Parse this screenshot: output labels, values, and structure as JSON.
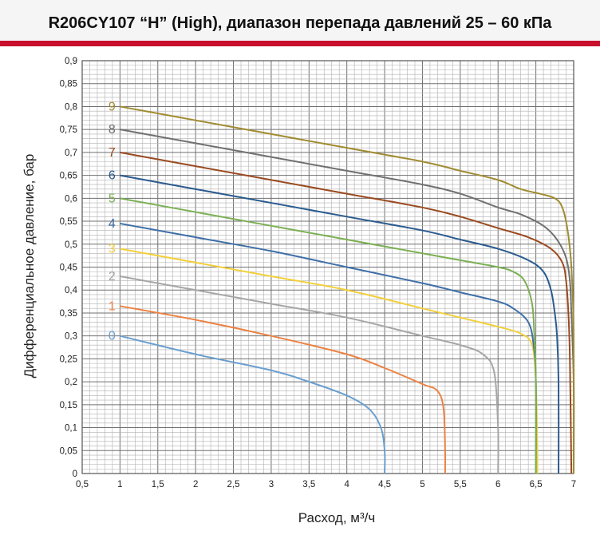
{
  "title": "R206CY107 “H” (High), диапазон перепада давлений 25 – 60 кПа",
  "colors": {
    "header_bar": "#c8102e",
    "grid_major": "#707070",
    "grid_minor": "#b0b0b0"
  },
  "chart_data": {
    "type": "line",
    "title": "R206CY107 “H” (High), диапазон перепада давлений 25 – 60 кПа",
    "xlabel": "Расход, м³/ч",
    "ylabel": "Дифференциальное давление, бар",
    "xlim": [
      0.5,
      7
    ],
    "ylim": [
      0,
      0.9
    ],
    "xticks": [
      0.5,
      1,
      1.5,
      2,
      2.5,
      3,
      3.5,
      4,
      4.5,
      5,
      5.5,
      6,
      6.5,
      7
    ],
    "xtick_labels": [
      "0,5",
      "1",
      "1,5",
      "2",
      "2,5",
      "3",
      "3,5",
      "4",
      "4,5",
      "5",
      "5,5",
      "6",
      "6,5",
      "7"
    ],
    "yticks": [
      0,
      0.05,
      0.1,
      0.15,
      0.2,
      0.25,
      0.3,
      0.35,
      0.4,
      0.45,
      0.5,
      0.55,
      0.6,
      0.65,
      0.7,
      0.75,
      0.8,
      0.85,
      0.9
    ],
    "ytick_labels": [
      "0",
      "0,05",
      "0,1",
      "0,15",
      "0,2",
      "0,25",
      "0,3",
      "0,35",
      "0,4",
      "0,45",
      "0,5",
      "0,55",
      "0,6",
      "0,65",
      "0,7",
      "0,75",
      "0,8",
      "0,85",
      "0,9"
    ],
    "grid": true,
    "series": [
      {
        "name": "0",
        "color": "#6a9fd0",
        "points": [
          [
            1,
            0.3
          ],
          [
            2,
            0.26
          ],
          [
            3,
            0.225
          ],
          [
            3.5,
            0.2
          ],
          [
            4,
            0.17
          ],
          [
            4.3,
            0.14
          ],
          [
            4.45,
            0.1
          ],
          [
            4.5,
            0.05
          ],
          [
            4.5,
            0
          ]
        ]
      },
      {
        "name": "1",
        "color": "#ec8242",
        "points": [
          [
            1,
            0.365
          ],
          [
            2,
            0.335
          ],
          [
            3,
            0.3
          ],
          [
            4,
            0.26
          ],
          [
            4.5,
            0.23
          ],
          [
            5,
            0.195
          ],
          [
            5.2,
            0.18
          ],
          [
            5.28,
            0.14
          ],
          [
            5.3,
            0.05
          ],
          [
            5.3,
            0
          ]
        ]
      },
      {
        "name": "2",
        "color": "#a6a6a6",
        "points": [
          [
            1,
            0.43
          ],
          [
            2,
            0.4
          ],
          [
            3,
            0.37
          ],
          [
            4,
            0.34
          ],
          [
            5,
            0.3
          ],
          [
            5.5,
            0.28
          ],
          [
            5.8,
            0.26
          ],
          [
            5.95,
            0.22
          ],
          [
            6,
            0.1
          ],
          [
            6,
            0
          ]
        ]
      },
      {
        "name": "3",
        "color": "#f2d03b",
        "points": [
          [
            1,
            0.49
          ],
          [
            2,
            0.46
          ],
          [
            3,
            0.43
          ],
          [
            4,
            0.4
          ],
          [
            5,
            0.36
          ],
          [
            5.5,
            0.34
          ],
          [
            6,
            0.32
          ],
          [
            6.3,
            0.305
          ],
          [
            6.45,
            0.28
          ],
          [
            6.5,
            0.2
          ],
          [
            6.52,
            0.05
          ],
          [
            6.52,
            0
          ]
        ]
      },
      {
        "name": "4",
        "color": "#3f6fa8",
        "points": [
          [
            1,
            0.545
          ],
          [
            2,
            0.515
          ],
          [
            3,
            0.485
          ],
          [
            4,
            0.45
          ],
          [
            5,
            0.415
          ],
          [
            5.5,
            0.395
          ],
          [
            6,
            0.375
          ],
          [
            6.2,
            0.36
          ],
          [
            6.4,
            0.33
          ],
          [
            6.47,
            0.28
          ],
          [
            6.5,
            0.2
          ],
          [
            6.5,
            0
          ]
        ]
      },
      {
        "name": "5",
        "color": "#7bb054",
        "points": [
          [
            1,
            0.6
          ],
          [
            2,
            0.57
          ],
          [
            3,
            0.54
          ],
          [
            4,
            0.51
          ],
          [
            5,
            0.48
          ],
          [
            5.5,
            0.465
          ],
          [
            6,
            0.45
          ],
          [
            6.2,
            0.44
          ],
          [
            6.35,
            0.42
          ],
          [
            6.45,
            0.37
          ],
          [
            6.48,
            0.3
          ],
          [
            6.5,
            0.2
          ],
          [
            6.5,
            0
          ]
        ]
      },
      {
        "name": "6",
        "color": "#2b5b8f",
        "points": [
          [
            1,
            0.65
          ],
          [
            2,
            0.62
          ],
          [
            3,
            0.59
          ],
          [
            4,
            0.56
          ],
          [
            5,
            0.53
          ],
          [
            5.5,
            0.51
          ],
          [
            6,
            0.49
          ],
          [
            6.4,
            0.465
          ],
          [
            6.6,
            0.44
          ],
          [
            6.7,
            0.4
          ],
          [
            6.75,
            0.35
          ],
          [
            6.78,
            0.3
          ],
          [
            6.8,
            0.2
          ],
          [
            6.8,
            0
          ]
        ]
      },
      {
        "name": "7",
        "color": "#9b4a20",
        "points": [
          [
            1,
            0.7
          ],
          [
            2,
            0.67
          ],
          [
            3,
            0.64
          ],
          [
            4,
            0.61
          ],
          [
            5,
            0.58
          ],
          [
            5.5,
            0.56
          ],
          [
            6,
            0.535
          ],
          [
            6.4,
            0.515
          ],
          [
            6.7,
            0.49
          ],
          [
            6.85,
            0.46
          ],
          [
            6.9,
            0.42
          ],
          [
            6.93,
            0.35
          ],
          [
            6.95,
            0.25
          ],
          [
            6.97,
            0
          ]
        ]
      },
      {
        "name": "8",
        "color": "#707070",
        "points": [
          [
            1,
            0.75
          ],
          [
            2,
            0.72
          ],
          [
            3,
            0.69
          ],
          [
            4,
            0.66
          ],
          [
            5,
            0.63
          ],
          [
            5.5,
            0.61
          ],
          [
            6,
            0.58
          ],
          [
            6.3,
            0.565
          ],
          [
            6.6,
            0.54
          ],
          [
            6.78,
            0.51
          ],
          [
            6.9,
            0.47
          ],
          [
            6.95,
            0.42
          ],
          [
            6.97,
            0.35
          ],
          [
            7,
            0.2
          ],
          [
            7,
            0
          ]
        ]
      },
      {
        "name": "9",
        "color": "#a08c30",
        "points": [
          [
            1,
            0.8
          ],
          [
            2,
            0.77
          ],
          [
            3,
            0.74
          ],
          [
            4,
            0.71
          ],
          [
            5,
            0.68
          ],
          [
            5.5,
            0.66
          ],
          [
            6,
            0.64
          ],
          [
            6.3,
            0.62
          ],
          [
            6.55,
            0.61
          ],
          [
            6.75,
            0.6
          ],
          [
            6.85,
            0.58
          ],
          [
            6.92,
            0.53
          ],
          [
            6.97,
            0.45
          ],
          [
            7,
            0.3
          ],
          [
            7,
            0
          ]
        ]
      }
    ]
  }
}
